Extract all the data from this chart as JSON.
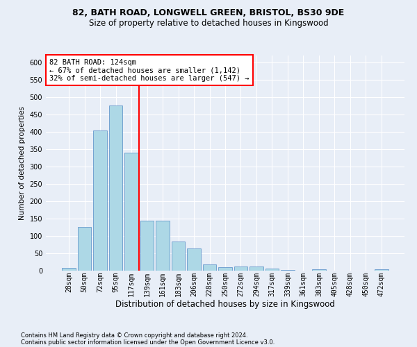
{
  "title_line1": "82, BATH ROAD, LONGWELL GREEN, BRISTOL, BS30 9DE",
  "title_line2": "Size of property relative to detached houses in Kingswood",
  "xlabel": "Distribution of detached houses by size in Kingswood",
  "ylabel": "Number of detached properties",
  "footer_line1": "Contains HM Land Registry data © Crown copyright and database right 2024.",
  "footer_line2": "Contains public sector information licensed under the Open Government Licence v3.0.",
  "bar_labels": [
    "28sqm",
    "50sqm",
    "72sqm",
    "95sqm",
    "117sqm",
    "139sqm",
    "161sqm",
    "183sqm",
    "206sqm",
    "228sqm",
    "250sqm",
    "272sqm",
    "294sqm",
    "317sqm",
    "339sqm",
    "361sqm",
    "383sqm",
    "405sqm",
    "428sqm",
    "450sqm",
    "472sqm"
  ],
  "bar_values": [
    8,
    127,
    405,
    476,
    340,
    144,
    144,
    84,
    65,
    18,
    10,
    13,
    13,
    6,
    3,
    0,
    4,
    0,
    0,
    0,
    4
  ],
  "bar_color": "#add8e6",
  "bar_edgecolor": "#6699cc",
  "vline_x": 4.5,
  "vline_color": "red",
  "annotation_title": "82 BATH ROAD: 124sqm",
  "annotation_line1": "← 67% of detached houses are smaller (1,142)",
  "annotation_line2": "32% of semi-detached houses are larger (547) →",
  "annotation_box_color": "white",
  "annotation_box_edgecolor": "red",
  "ylim": [
    0,
    620
  ],
  "yticks": [
    0,
    50,
    100,
    150,
    200,
    250,
    300,
    350,
    400,
    450,
    500,
    550,
    600
  ],
  "background_color": "#e8eef7",
  "plot_background_color": "#e8eef7",
  "title1_fontsize": 9,
  "title2_fontsize": 8.5,
  "xlabel_fontsize": 8.5,
  "ylabel_fontsize": 7.5,
  "tick_fontsize": 7,
  "annotation_fontsize": 7.5,
  "footer_fontsize": 6
}
